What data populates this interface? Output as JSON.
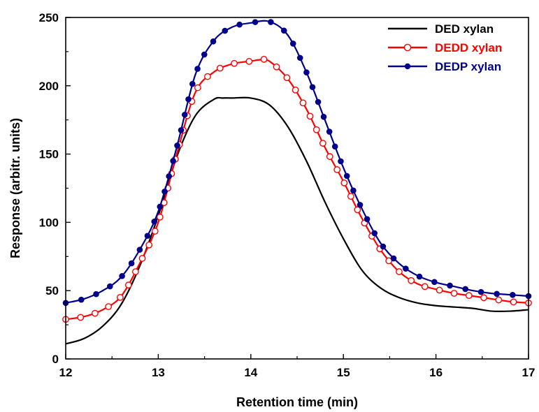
{
  "chart_data": {
    "type": "line",
    "xlabel": "Retention time (min)",
    "ylabel": "Response (arbitr. units)",
    "xlim": [
      12,
      17
    ],
    "ylim": [
      0,
      250
    ],
    "x_ticks": [
      12,
      13,
      14,
      15,
      16,
      17
    ],
    "y_ticks": [
      0,
      50,
      100,
      150,
      200,
      250
    ],
    "grid": false,
    "legend_position": "top-right",
    "series": [
      {
        "name": "DED xylan",
        "color": "#000000",
        "marker": "none",
        "x": [
          12.0,
          12.2,
          12.4,
          12.6,
          12.8,
          13.0,
          13.2,
          13.4,
          13.6,
          13.7,
          13.8,
          14.0,
          14.2,
          14.4,
          14.6,
          14.8,
          15.0,
          15.2,
          15.4,
          15.6,
          15.8,
          16.0,
          16.2,
          16.4,
          16.6,
          16.8,
          17.0
        ],
        "y": [
          11,
          15,
          24,
          40,
          68,
          105,
          148,
          178,
          190,
          191,
          191,
          191,
          186,
          170,
          145,
          115,
          88,
          65,
          52,
          45,
          41,
          39,
          38,
          37,
          35,
          35,
          36
        ]
      },
      {
        "name": "DEDD xylan",
        "color": "#ff0000",
        "marker": "open-circle",
        "x": [
          12.0,
          12.2,
          12.4,
          12.6,
          12.8,
          13.0,
          13.2,
          13.4,
          13.6,
          13.8,
          14.0,
          14.1,
          14.2,
          14.4,
          14.6,
          14.8,
          15.0,
          15.2,
          15.4,
          15.6,
          15.8,
          16.0,
          16.2,
          16.4,
          16.6,
          16.8,
          17.0
        ],
        "y": [
          29,
          31,
          36,
          46,
          70,
          100,
          150,
          195,
          210,
          216,
          218,
          219,
          218,
          205,
          183,
          155,
          130,
          103,
          80,
          64,
          55,
          51,
          48,
          46,
          44,
          42,
          41
        ]
      },
      {
        "name": "DEDP xylan",
        "color": "#00008b",
        "marker": "filled-circle",
        "x": [
          12.0,
          12.2,
          12.4,
          12.6,
          12.8,
          13.0,
          13.2,
          13.4,
          13.6,
          13.8,
          14.0,
          14.2,
          14.4,
          14.6,
          14.8,
          15.0,
          15.2,
          15.4,
          15.6,
          15.8,
          16.0,
          16.2,
          16.4,
          16.6,
          16.8,
          17.0
        ],
        "y": [
          41,
          44,
          50,
          60,
          80,
          108,
          155,
          208,
          233,
          243,
          246,
          247,
          237,
          210,
          175,
          140,
          110,
          85,
          70,
          61,
          56,
          53,
          50,
          48,
          47,
          46
        ]
      }
    ]
  }
}
